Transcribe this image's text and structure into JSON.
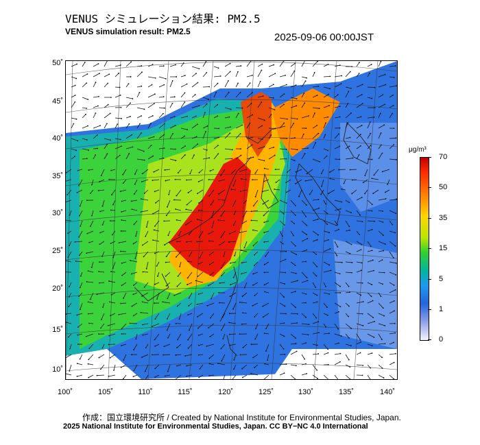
{
  "header": {
    "title_jp": "VENUS シミュレーション結果: PM2.5",
    "title_en": "VENUS simulation result: PM2.5",
    "timestamp": "2025-09-06 00:00JST"
  },
  "map": {
    "lat_labels": [
      "50˚",
      "45˚",
      "40˚",
      "35˚",
      "30˚",
      "25˚",
      "20˚",
      "15˚",
      "10˚"
    ],
    "lon_labels": [
      "100˚",
      "105˚",
      "110˚",
      "115˚",
      "120˚",
      "125˚",
      "130˚",
      "135˚",
      "140˚"
    ]
  },
  "colorbar": {
    "unit": "μg/m³",
    "labels": [
      "70",
      "50",
      "35",
      "15",
      "5",
      "1",
      "0"
    ]
  },
  "footer": {
    "credit_line1": "作成：国立環境研究所 / Created by National Institute for Environmental Studies, Japan.",
    "credit_line2": "2025 National Institute for Environmental Studies, Japan. CC BY−NC 4.0 International"
  }
}
